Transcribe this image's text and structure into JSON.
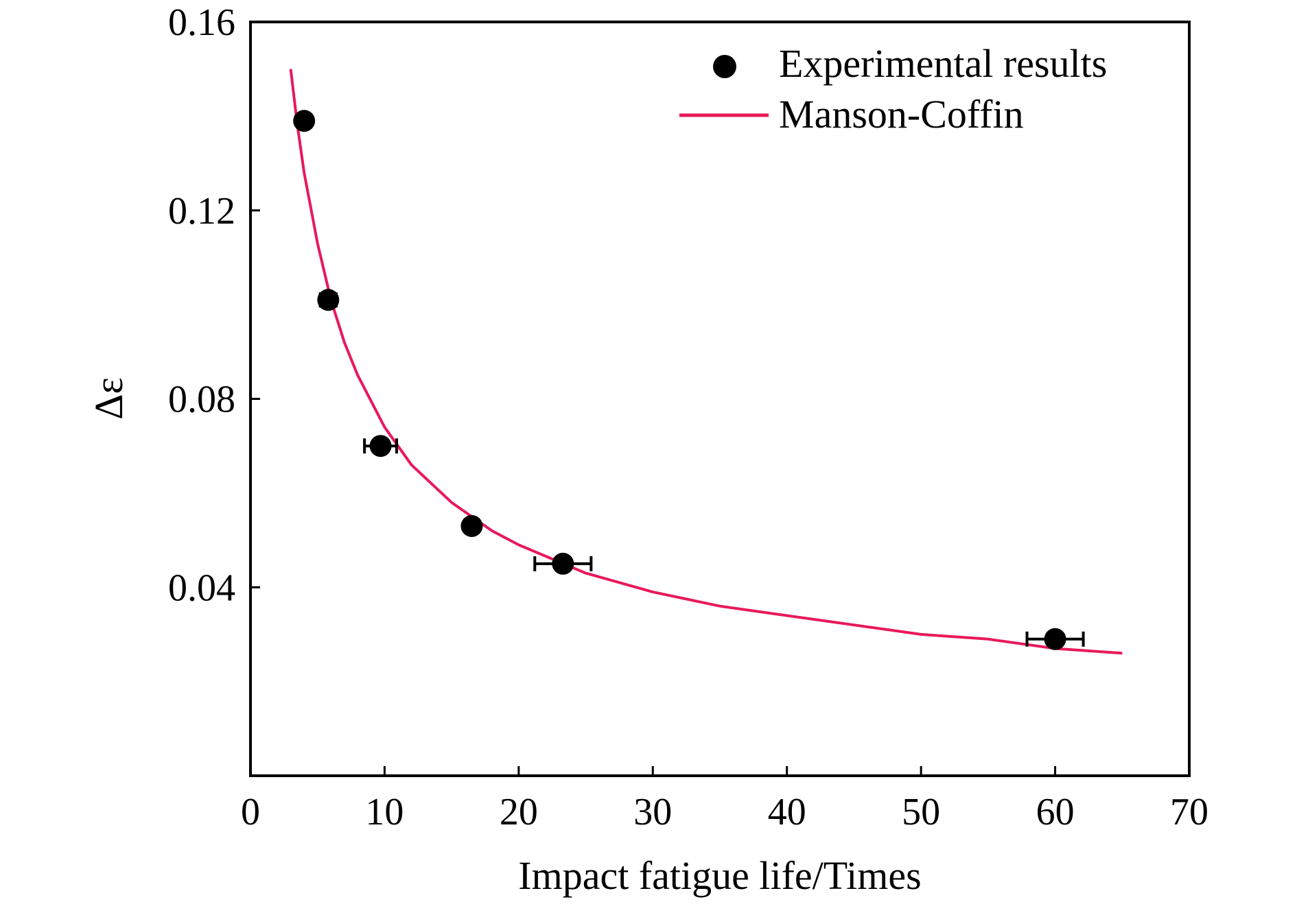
{
  "chart_data": {
    "type": "scatter",
    "xlabel": "Impact fatigue life/Times",
    "ylabel": "Δε",
    "xlim": [
      0,
      70
    ],
    "ylim": [
      0,
      0.16
    ],
    "x_ticks": [
      "0",
      "10",
      "20",
      "30",
      "40",
      "50",
      "60",
      "70"
    ],
    "y_ticks": [
      "0.04",
      "0.08",
      "0.12",
      "0.16"
    ],
    "legend_position": "top-right",
    "grid": false,
    "colors": {
      "points": "#000000",
      "fit": "#e8195a"
    },
    "legend": [
      {
        "label": "Experimental results",
        "kind": "marker"
      },
      {
        "label": "Manson-Coffin",
        "kind": "line"
      }
    ],
    "series": [
      {
        "kind": "points",
        "x": [
          4.0,
          5.8,
          9.7,
          16.5,
          23.3,
          60.0
        ],
        "y": [
          0.139,
          0.101,
          0.07,
          0.053,
          0.045,
          0.029
        ],
        "x_err": [
          0.5,
          0.6,
          1.2,
          0.5,
          2.1,
          2.1
        ]
      },
      {
        "kind": "line",
        "x": [
          3.0,
          3.5,
          4.0,
          5.0,
          6.0,
          7.0,
          8.0,
          10.0,
          12.0,
          15.0,
          18.0,
          20.0,
          25.0,
          30.0,
          35.0,
          40.0,
          45.0,
          50.0,
          55.0,
          60.0,
          65.0
        ],
        "y": [
          0.15,
          0.138,
          0.128,
          0.113,
          0.101,
          0.092,
          0.085,
          0.074,
          0.066,
          0.058,
          0.052,
          0.049,
          0.043,
          0.039,
          0.036,
          0.034,
          0.032,
          0.03,
          0.029,
          0.027,
          0.026
        ]
      }
    ]
  }
}
